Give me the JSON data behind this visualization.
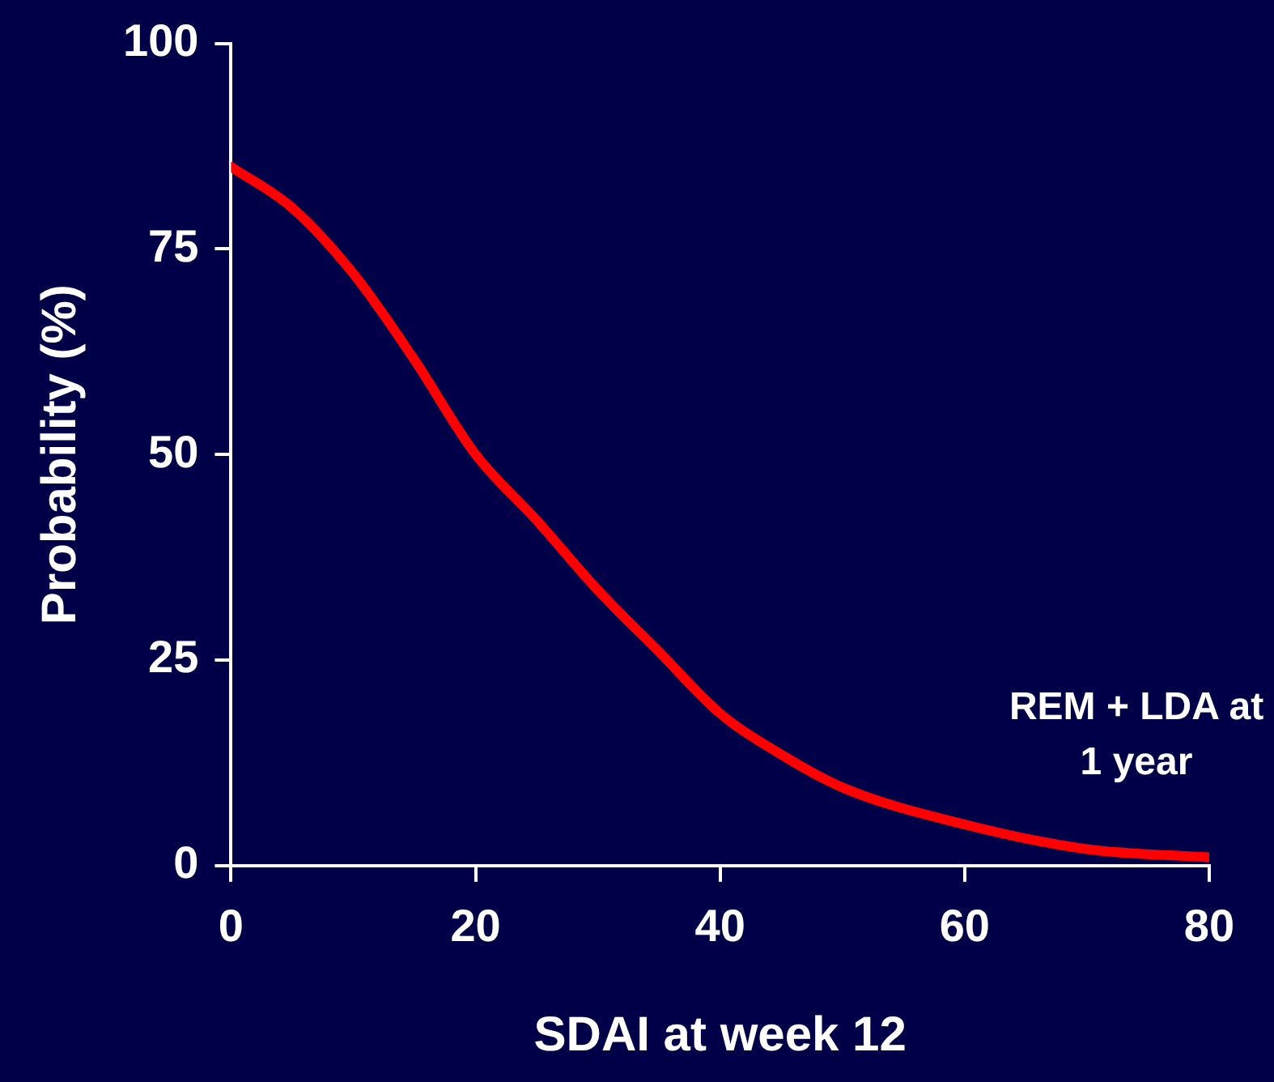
{
  "chart_data": {
    "type": "line",
    "xlabel": "SDAI at week 12",
    "ylabel": "Probability (%)",
    "x": [
      0,
      5,
      10,
      15,
      20,
      25,
      30,
      35,
      40,
      45,
      50,
      60,
      70,
      80
    ],
    "series": [
      {
        "color": "#ff0000",
        "values": [
          85,
          80,
          72,
          61.5,
          50,
          42,
          33.5,
          26,
          18.5,
          13.5,
          9.5,
          5,
          2,
          1
        ]
      }
    ],
    "xlim": [
      0,
      80
    ],
    "xticks": [
      0,
      20,
      40,
      60,
      80
    ],
    "ylim": [
      0,
      100
    ],
    "yticks": [
      0,
      25,
      50,
      75,
      100
    ],
    "grid": false,
    "legend": false,
    "marker": "none",
    "line_style": "solid",
    "annotations": [
      "REM + LDA at 1 year"
    ]
  }
}
